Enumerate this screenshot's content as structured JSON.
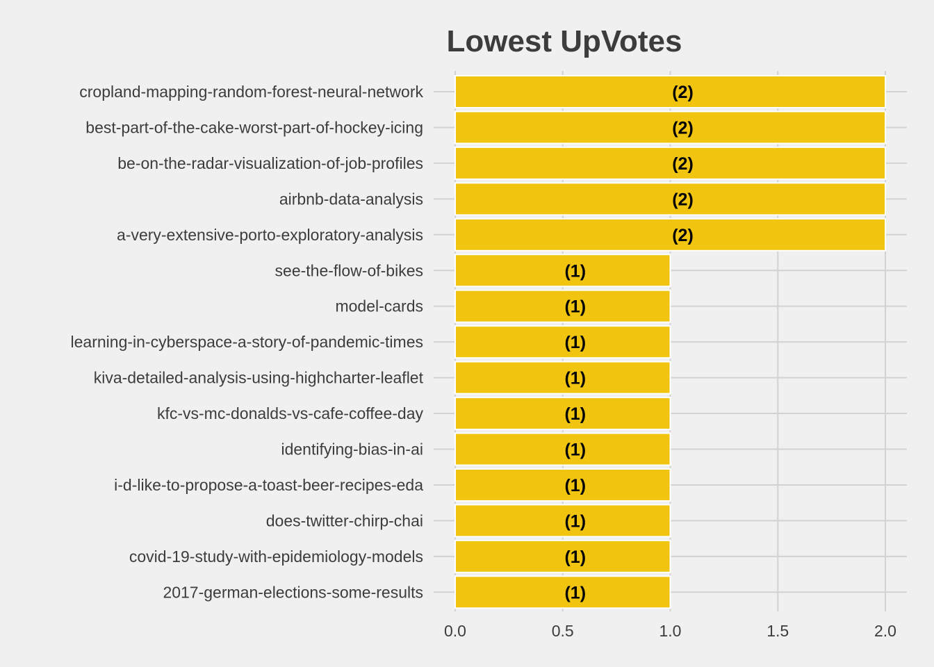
{
  "chart_data": {
    "type": "bar",
    "orientation": "horizontal",
    "title": "Lowest UpVotes",
    "xlabel": "",
    "ylabel": "",
    "categories": [
      "cropland-mapping-random-forest-neural-network",
      "best-part-of-the-cake-worst-part-of-hockey-icing",
      "be-on-the-radar-visualization-of-job-profiles",
      "airbnb-data-analysis",
      "a-very-extensive-porto-exploratory-analysis",
      "see-the-flow-of-bikes",
      "model-cards",
      "learning-in-cyberspace-a-story-of-pandemic-times",
      "kiva-detailed-analysis-using-highcharter-leaflet",
      "kfc-vs-mc-donalds-vs-cafe-coffee-day",
      "identifying-bias-in-ai",
      "i-d-like-to-propose-a-toast-beer-recipes-eda",
      "does-twitter-chirp-chai",
      "covid-19-study-with-epidemiology-models",
      "2017-german-elections-some-results"
    ],
    "values": [
      2,
      2,
      2,
      2,
      2,
      1,
      1,
      1,
      1,
      1,
      1,
      1,
      1,
      1,
      1
    ],
    "data_labels": [
      "(2)",
      "(2)",
      "(2)",
      "(2)",
      "(2)",
      "(1)",
      "(1)",
      "(1)",
      "(1)",
      "(1)",
      "(1)",
      "(1)",
      "(1)",
      "(1)",
      "(1)"
    ],
    "xlim": [
      0,
      2.1
    ],
    "xticks": [
      0,
      0.5,
      1,
      1.5,
      2
    ],
    "xtick_labels": [
      "0.0",
      "0.5",
      "1.0",
      "1.5",
      "2.0"
    ],
    "grid": true,
    "legend": "none",
    "colors": {
      "bar": "#f1c40f",
      "background": "#f0f0f0",
      "grid": "#d2d2d2",
      "text": "#3c3c3c"
    }
  }
}
